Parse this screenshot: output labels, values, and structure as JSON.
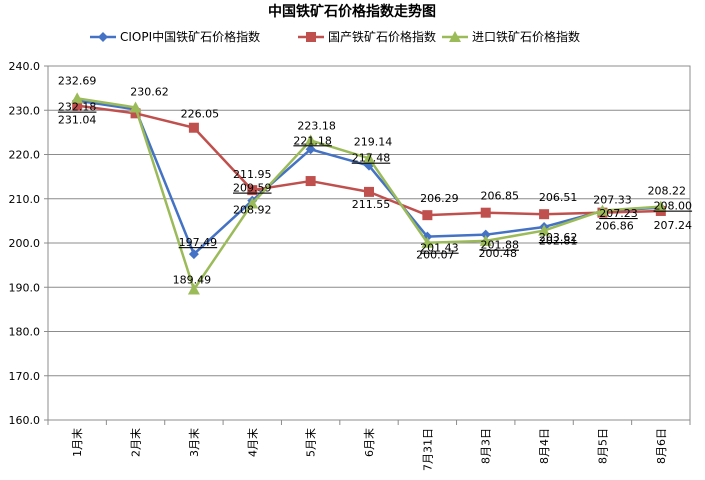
{
  "chart_data": {
    "type": "line",
    "title": "中国铁矿石价格指数走势图",
    "xlabel": "",
    "ylabel": "",
    "categories": [
      "1月末",
      "2月末",
      "3月末",
      "4月末",
      "5月末",
      "6月末",
      "7月31日",
      "8月3日",
      "8月4日",
      "8月5日",
      "8月6日"
    ],
    "ylim": [
      160,
      240
    ],
    "yticks": [
      "160.0",
      "170.0",
      "180.0",
      "190.0",
      "200.0",
      "210.0",
      "220.0",
      "230.0",
      "240.0"
    ],
    "grid": "horizontal",
    "legend_position": "top",
    "series": [
      {
        "name": "CIOPI中国铁矿石价格指数",
        "color": "#4472C4",
        "marker": "diamond",
        "values": [
          232.18,
          230.2,
          197.49,
          209.59,
          221.18,
          217.48,
          201.43,
          201.88,
          203.62,
          207.23,
          208.0
        ],
        "labels": [
          "232.18",
          "",
          "197.49",
          "209.59",
          "221.18",
          "217.48",
          "201.43",
          "201.88",
          "203.62",
          "207.23",
          "208.00"
        ]
      },
      {
        "name": "国产铁矿石价格指数",
        "color": "#C0504D",
        "marker": "square",
        "values": [
          231.04,
          229.3,
          226.05,
          211.95,
          214.0,
          211.55,
          206.29,
          206.85,
          206.51,
          206.86,
          207.24
        ],
        "labels": [
          "231.04",
          "",
          "226.05",
          "211.95",
          "",
          "211.55",
          "206.29",
          "206.85",
          "206.51",
          "206.86",
          "207.24"
        ]
      },
      {
        "name": "进口铁矿石价格指数",
        "color": "#9BBB59",
        "marker": "triangle",
        "values": [
          232.69,
          230.62,
          189.49,
          208.92,
          223.18,
          219.14,
          200.07,
          200.48,
          202.81,
          207.33,
          208.22
        ],
        "labels": [
          "232.69",
          "230.62",
          "189.49",
          "208.92",
          "223.18",
          "219.14",
          "200.07",
          "200.48",
          "202.81",
          "207.33",
          "208.22"
        ]
      }
    ]
  }
}
